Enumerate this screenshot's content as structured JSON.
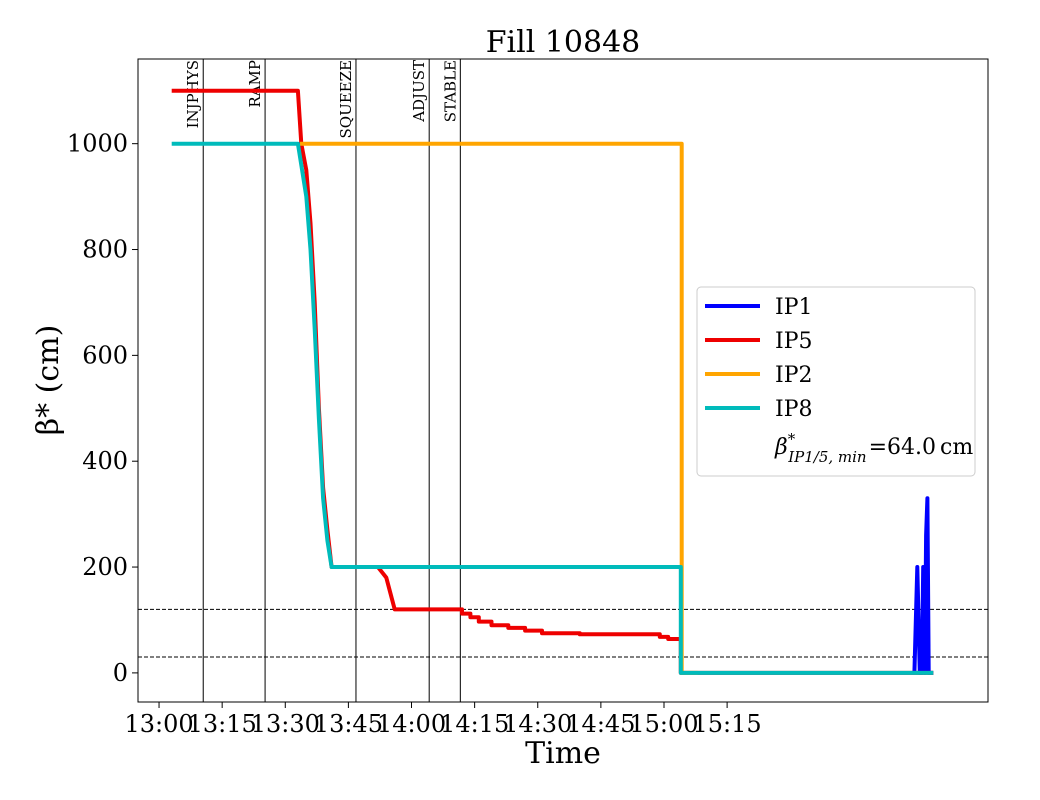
{
  "chart_data": {
    "type": "line",
    "title": "Fill 10848",
    "xlabel": "Time",
    "ylabel": "β* (cm)",
    "x_unit": "minutes after 13:00",
    "xlim": [
      -5,
      197
    ],
    "ylim": [
      -55,
      1160
    ],
    "x_ticks": [
      {
        "value": 0,
        "label": "13:00"
      },
      {
        "value": 15,
        "label": "13:15"
      },
      {
        "value": 30,
        "label": "13:30"
      },
      {
        "value": 45,
        "label": "13:45"
      },
      {
        "value": 60,
        "label": "14:00"
      },
      {
        "value": 75,
        "label": "14:15"
      },
      {
        "value": 90,
        "label": "14:30"
      },
      {
        "value": 105,
        "label": "14:45"
      },
      {
        "value": 120,
        "label": "15:00"
      },
      {
        "value": 135,
        "label": "15:15"
      }
    ],
    "y_ticks": [
      0,
      200,
      400,
      600,
      800,
      1000
    ],
    "phases": [
      {
        "label": "INJPHYS",
        "x": 10.5
      },
      {
        "label": "RAMP",
        "x": 25.2
      },
      {
        "label": "SQUEEZE",
        "x": 46.8
      },
      {
        "label": "ADJUST",
        "x": 64.2
      },
      {
        "label": "STABLE",
        "x": 71.6
      }
    ],
    "reference_lines": [
      120,
      30
    ],
    "grid": false,
    "legend_position": "center-right",
    "series": [
      {
        "name": "IP1",
        "color": "#0000ff",
        "points": [
          [
            179.5,
            0
          ],
          [
            180.2,
            200
          ],
          [
            180.8,
            0
          ],
          [
            181.3,
            0
          ],
          [
            181.6,
            200
          ],
          [
            182.0,
            0
          ],
          [
            182.3,
            260
          ],
          [
            182.6,
            330
          ],
          [
            182.9,
            0
          ],
          [
            184.0,
            0
          ]
        ]
      },
      {
        "name": "IP5",
        "color": "#ee0000",
        "points": [
          [
            3,
            1100
          ],
          [
            33,
            1100
          ],
          [
            33.8,
            1000
          ],
          [
            35,
            950
          ],
          [
            36,
            850
          ],
          [
            37,
            700
          ],
          [
            38,
            500
          ],
          [
            39,
            350
          ],
          [
            40,
            270
          ],
          [
            41,
            200
          ],
          [
            52,
            200
          ],
          [
            54,
            180
          ],
          [
            55,
            150
          ],
          [
            56,
            120
          ],
          [
            72,
            120
          ],
          [
            72,
            112
          ],
          [
            74,
            112
          ],
          [
            74,
            105
          ],
          [
            76,
            105
          ],
          [
            76,
            97
          ],
          [
            79,
            97
          ],
          [
            79,
            90
          ],
          [
            83,
            90
          ],
          [
            83,
            85
          ],
          [
            87,
            85
          ],
          [
            87,
            80
          ],
          [
            91,
            80
          ],
          [
            91,
            75
          ],
          [
            100,
            75
          ],
          [
            100,
            73
          ],
          [
            119,
            73
          ],
          [
            119,
            68
          ],
          [
            121,
            68
          ],
          [
            121,
            64
          ],
          [
            124,
            64
          ],
          [
            124,
            0
          ],
          [
            184,
            0
          ]
        ]
      },
      {
        "name": "IP2",
        "color": "#ffa500",
        "points": [
          [
            33.5,
            1000
          ],
          [
            124.2,
            1000
          ],
          [
            124.2,
            0
          ],
          [
            128,
            0
          ]
        ]
      },
      {
        "name": "IP8",
        "color": "#00bbbb",
        "points": [
          [
            3,
            1000
          ],
          [
            33,
            1000
          ],
          [
            34,
            950
          ],
          [
            35,
            900
          ],
          [
            36,
            800
          ],
          [
            37,
            650
          ],
          [
            38,
            480
          ],
          [
            39,
            330
          ],
          [
            40,
            250
          ],
          [
            41,
            200
          ],
          [
            124,
            200
          ],
          [
            124,
            0
          ],
          [
            184,
            0
          ]
        ]
      }
    ],
    "legend_extra": {
      "symbol": "β",
      "superscript": "*",
      "subscript": "IP1/5, min",
      "equals": "=",
      "value": "64.0",
      "unit": "cm"
    }
  }
}
